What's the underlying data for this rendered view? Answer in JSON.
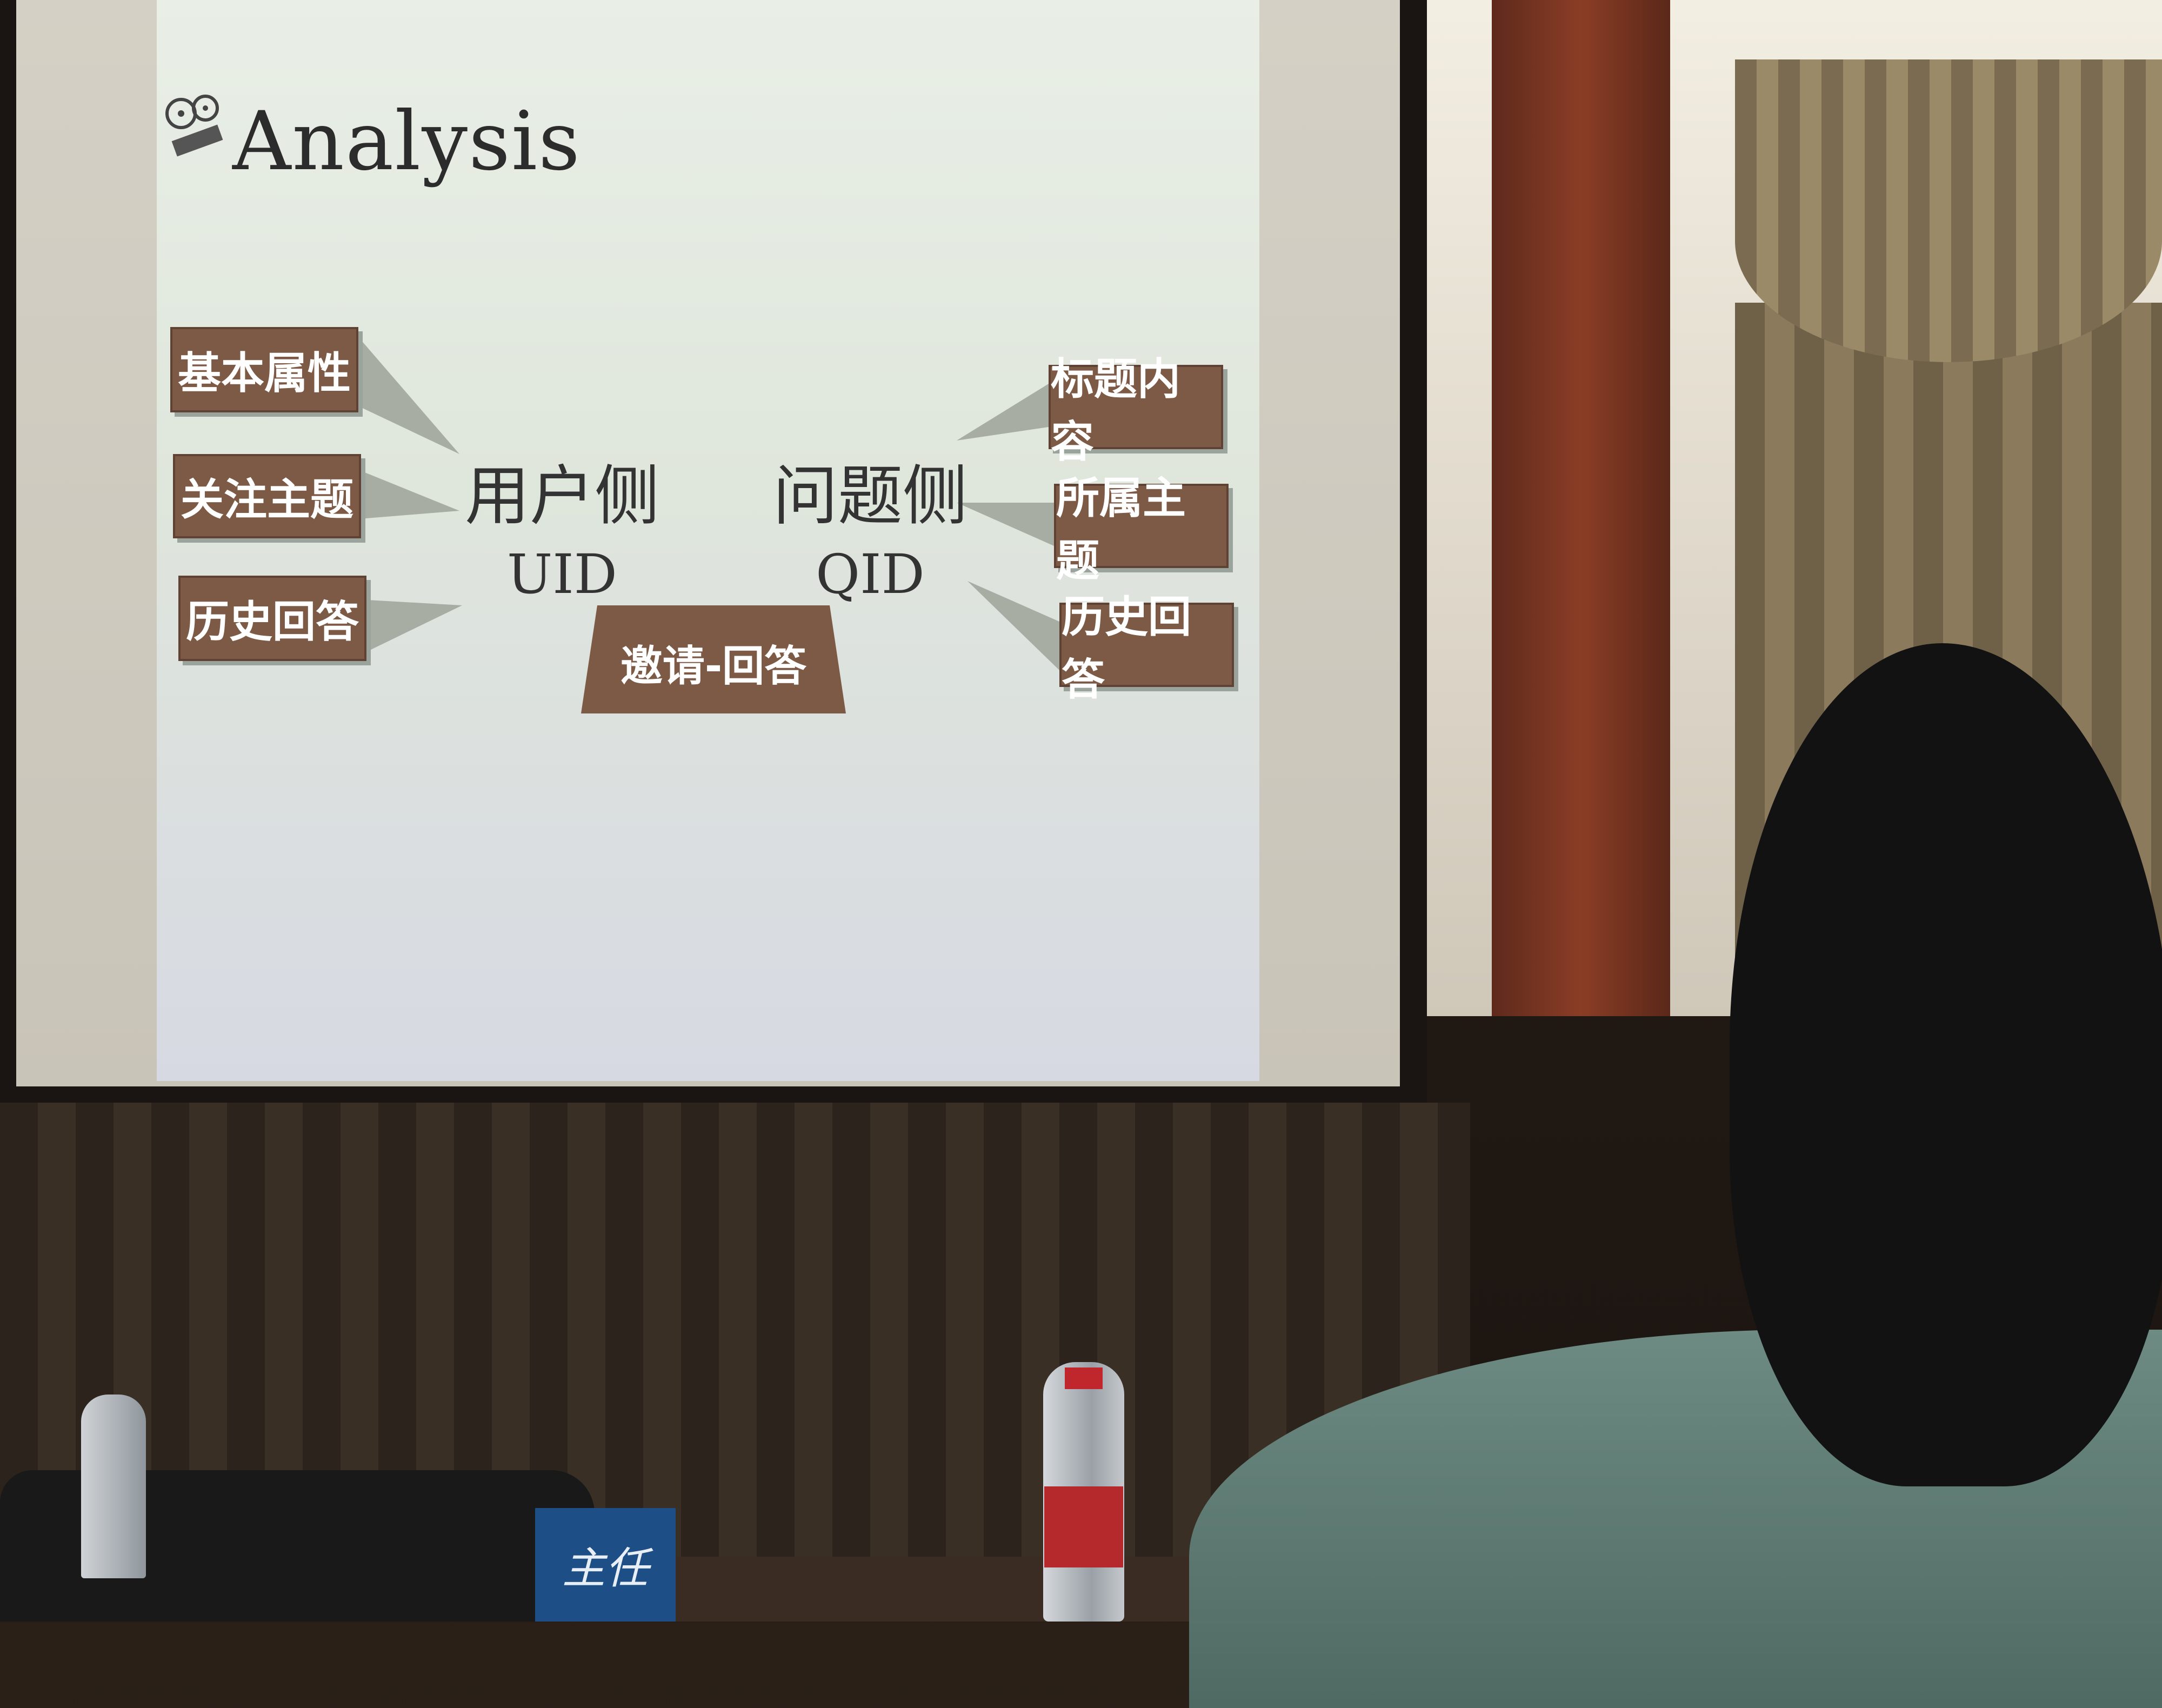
{
  "slide": {
    "title": "Analysis",
    "user_side": {
      "label": "用户侧",
      "id": "UID"
    },
    "question_side": {
      "label": "问题侧",
      "id": "QID"
    },
    "user_features": [
      "基本属性",
      "关注主题",
      "历史回答"
    ],
    "question_features": [
      "标题内容",
      "所属主题",
      "历史回答"
    ],
    "link_label": "邀请-回答"
  },
  "scene": {
    "nameplate_text": "主任"
  },
  "colors": {
    "box_fill": "#7d5a46",
    "box_shadow": "#9aa39c",
    "slide_bg": "#e6ece4"
  }
}
